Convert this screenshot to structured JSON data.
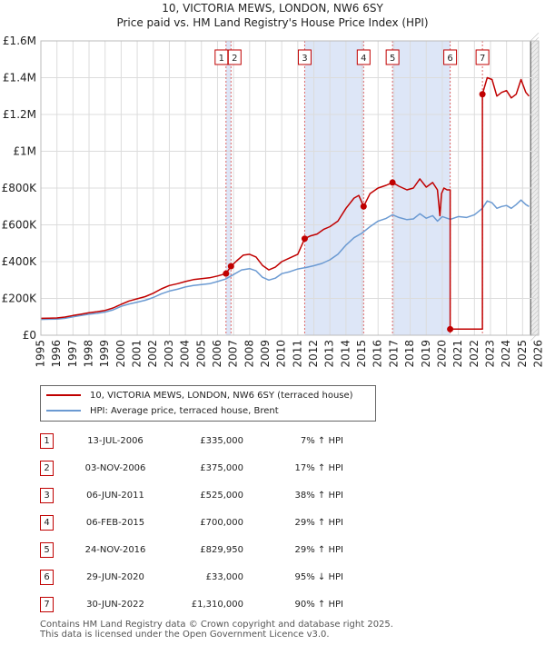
{
  "title_line1": "10, VICTORIA MEWS, LONDON, NW6 6SY",
  "title_line2": "Price paid vs. HM Land Registry's House Price Index (HPI)",
  "chart_data": {
    "type": "line",
    "xlim": [
      1995,
      2026
    ],
    "ylim": [
      0,
      1600000
    ],
    "y_ticks": [
      {
        "value": 0,
        "label": "£0"
      },
      {
        "value": 200000,
        "label": "£200K"
      },
      {
        "value": 400000,
        "label": "£400K"
      },
      {
        "value": 600000,
        "label": "£600K"
      },
      {
        "value": 800000,
        "label": "£800K"
      },
      {
        "value": 1000000,
        "label": "£1M"
      },
      {
        "value": 1200000,
        "label": "£1.2M"
      },
      {
        "value": 1400000,
        "label": "£1.4M"
      },
      {
        "value": 1600000,
        "label": "£1.6M"
      }
    ],
    "x_ticks": [
      1995,
      1996,
      1997,
      1998,
      1999,
      2000,
      2001,
      2002,
      2003,
      2004,
      2005,
      2006,
      2007,
      2008,
      2009,
      2010,
      2011,
      2012,
      2013,
      2014,
      2015,
      2016,
      2017,
      2018,
      2019,
      2020,
      2021,
      2022,
      2023,
      2024,
      2025,
      2026
    ],
    "series": [
      {
        "name": "10, VICTORIA MEWS, LONDON, NW6 6SY (terraced house)",
        "color": "#c00000",
        "points": [
          [
            1995.0,
            92000
          ],
          [
            1995.5,
            93000
          ],
          [
            1996.0,
            94000
          ],
          [
            1996.5,
            99000
          ],
          [
            1997.0,
            107000
          ],
          [
            1997.5,
            114000
          ],
          [
            1998.0,
            122000
          ],
          [
            1998.5,
            128000
          ],
          [
            1999.0,
            135000
          ],
          [
            1999.5,
            148000
          ],
          [
            2000.0,
            168000
          ],
          [
            2000.5,
            186000
          ],
          [
            2001.0,
            198000
          ],
          [
            2001.5,
            210000
          ],
          [
            2002.0,
            228000
          ],
          [
            2002.5,
            252000
          ],
          [
            2003.0,
            270000
          ],
          [
            2003.5,
            280000
          ],
          [
            2004.0,
            292000
          ],
          [
            2004.5,
            302000
          ],
          [
            2005.0,
            307000
          ],
          [
            2005.5,
            312000
          ],
          [
            2006.0,
            322000
          ],
          [
            2006.53,
            335000
          ],
          [
            2006.84,
            375000
          ],
          [
            2007.2,
            405000
          ],
          [
            2007.6,
            435000
          ],
          [
            2008.0,
            440000
          ],
          [
            2008.4,
            425000
          ],
          [
            2008.8,
            380000
          ],
          [
            2009.2,
            355000
          ],
          [
            2009.6,
            370000
          ],
          [
            2010.0,
            400000
          ],
          [
            2010.5,
            420000
          ],
          [
            2011.0,
            440000
          ],
          [
            2011.43,
            525000
          ],
          [
            2011.8,
            540000
          ],
          [
            2012.2,
            550000
          ],
          [
            2012.6,
            575000
          ],
          [
            2013.0,
            590000
          ],
          [
            2013.5,
            620000
          ],
          [
            2014.0,
            690000
          ],
          [
            2014.5,
            745000
          ],
          [
            2014.8,
            760000
          ],
          [
            2015.1,
            700000
          ],
          [
            2015.5,
            770000
          ],
          [
            2016.0,
            800000
          ],
          [
            2016.5,
            815000
          ],
          [
            2016.9,
            829950
          ],
          [
            2017.3,
            810000
          ],
          [
            2017.8,
            790000
          ],
          [
            2018.2,
            800000
          ],
          [
            2018.6,
            850000
          ],
          [
            2019.0,
            805000
          ],
          [
            2019.4,
            830000
          ],
          [
            2019.7,
            790000
          ],
          [
            2019.85,
            650000
          ],
          [
            2019.95,
            770000
          ],
          [
            2020.1,
            800000
          ],
          [
            2020.3,
            790000
          ],
          [
            2020.49,
            790000
          ],
          [
            2020.49,
            33000
          ],
          [
            2022.5,
            33000
          ],
          [
            2022.5,
            1310000
          ],
          [
            2022.8,
            1400000
          ],
          [
            2023.1,
            1390000
          ],
          [
            2023.4,
            1300000
          ],
          [
            2023.7,
            1320000
          ],
          [
            2024.0,
            1330000
          ],
          [
            2024.3,
            1290000
          ],
          [
            2024.6,
            1310000
          ],
          [
            2024.9,
            1390000
          ],
          [
            2025.2,
            1320000
          ],
          [
            2025.4,
            1300000
          ]
        ]
      },
      {
        "name": "HPI: Average price, terraced house, Brent",
        "color": "#6b9ad2",
        "points": [
          [
            1995.0,
            86000
          ],
          [
            1995.5,
            87000
          ],
          [
            1996.0,
            88000
          ],
          [
            1996.5,
            92000
          ],
          [
            1997.0,
            100000
          ],
          [
            1997.5,
            107000
          ],
          [
            1998.0,
            114000
          ],
          [
            1998.5,
            119000
          ],
          [
            1999.0,
            126000
          ],
          [
            1999.5,
            138000
          ],
          [
            2000.0,
            157000
          ],
          [
            2000.5,
            170000
          ],
          [
            2001.0,
            180000
          ],
          [
            2001.5,
            190000
          ],
          [
            2002.0,
            205000
          ],
          [
            2002.5,
            225000
          ],
          [
            2003.0,
            240000
          ],
          [
            2003.5,
            250000
          ],
          [
            2004.0,
            262000
          ],
          [
            2004.5,
            270000
          ],
          [
            2005.0,
            275000
          ],
          [
            2005.5,
            280000
          ],
          [
            2006.0,
            292000
          ],
          [
            2006.5,
            305000
          ],
          [
            2007.0,
            330000
          ],
          [
            2007.5,
            355000
          ],
          [
            2008.0,
            362000
          ],
          [
            2008.4,
            350000
          ],
          [
            2008.8,
            315000
          ],
          [
            2009.2,
            300000
          ],
          [
            2009.6,
            310000
          ],
          [
            2010.0,
            335000
          ],
          [
            2010.5,
            345000
          ],
          [
            2011.0,
            360000
          ],
          [
            2011.5,
            368000
          ],
          [
            2012.0,
            378000
          ],
          [
            2012.5,
            390000
          ],
          [
            2013.0,
            410000
          ],
          [
            2013.5,
            440000
          ],
          [
            2014.0,
            490000
          ],
          [
            2014.5,
            530000
          ],
          [
            2015.0,
            555000
          ],
          [
            2015.5,
            590000
          ],
          [
            2016.0,
            620000
          ],
          [
            2016.5,
            635000
          ],
          [
            2016.9,
            655000
          ],
          [
            2017.3,
            640000
          ],
          [
            2017.8,
            628000
          ],
          [
            2018.2,
            632000
          ],
          [
            2018.6,
            660000
          ],
          [
            2019.0,
            636000
          ],
          [
            2019.4,
            650000
          ],
          [
            2019.7,
            620000
          ],
          [
            2020.0,
            645000
          ],
          [
            2020.5,
            630000
          ],
          [
            2021.0,
            645000
          ],
          [
            2021.5,
            640000
          ],
          [
            2022.0,
            655000
          ],
          [
            2022.5,
            690000
          ],
          [
            2022.8,
            730000
          ],
          [
            2023.1,
            720000
          ],
          [
            2023.4,
            690000
          ],
          [
            2023.7,
            700000
          ],
          [
            2024.0,
            705000
          ],
          [
            2024.3,
            690000
          ],
          [
            2024.6,
            710000
          ],
          [
            2024.9,
            735000
          ],
          [
            2025.2,
            710000
          ],
          [
            2025.4,
            700000
          ]
        ]
      }
    ],
    "sales": [
      {
        "id": "1",
        "x": 2006.53,
        "y": 335000
      },
      {
        "id": "2",
        "x": 2006.84,
        "y": 375000
      },
      {
        "id": "3",
        "x": 2011.43,
        "y": 525000
      },
      {
        "id": "4",
        "x": 2015.1,
        "y": 700000
      },
      {
        "id": "5",
        "x": 2016.9,
        "y": 829950
      },
      {
        "id": "6",
        "x": 2020.49,
        "y": 33000
      },
      {
        "id": "7",
        "x": 2022.5,
        "y": 1310000
      }
    ],
    "shaded_ranges": [
      [
        2006.53,
        2006.84
      ],
      [
        2011.43,
        2015.1
      ],
      [
        2016.9,
        2020.49
      ]
    ],
    "forecast_from": 2025.5
  },
  "legend": {
    "property_label": "10, VICTORIA MEWS, LONDON, NW6 6SY (terraced house)",
    "hpi_label": "HPI: Average price, terraced house, Brent"
  },
  "transactions": [
    {
      "num": "1",
      "date": "13-JUL-2006",
      "price": "£335,000",
      "hpi": "7% ↑ HPI"
    },
    {
      "num": "2",
      "date": "03-NOV-2006",
      "price": "£375,000",
      "hpi": "17% ↑ HPI"
    },
    {
      "num": "3",
      "date": "06-JUN-2011",
      "price": "£525,000",
      "hpi": "38% ↑ HPI"
    },
    {
      "num": "4",
      "date": "06-FEB-2015",
      "price": "£700,000",
      "hpi": "29% ↑ HPI"
    },
    {
      "num": "5",
      "date": "24-NOV-2016",
      "price": "£829,950",
      "hpi": "29% ↑ HPI"
    },
    {
      "num": "6",
      "date": "29-JUN-2020",
      "price": "£33,000",
      "hpi": "95% ↓ HPI"
    },
    {
      "num": "7",
      "date": "30-JUN-2022",
      "price": "£1,310,000",
      "hpi": "90% ↑ HPI"
    }
  ],
  "footer_line1": "Contains HM Land Registry data © Crown copyright and database right 2025.",
  "footer_line2": "This data is licensed under the Open Government Licence v3.0."
}
